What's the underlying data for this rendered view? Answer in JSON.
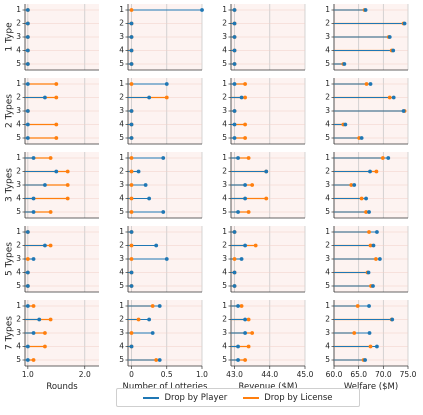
{
  "colors": {
    "player": "#1f77b4",
    "license": "#ff7f0e",
    "panel_bg": "#fdf3f1",
    "grid": "#c9c9c9"
  },
  "legend": {
    "player_label": "Drop by Player",
    "license_label": "Drop by License"
  },
  "chart_data": {
    "type": "dumbbell",
    "row_facets": [
      "1 Type",
      "2 Types",
      "3 Types",
      "5 Types",
      "7 Types"
    ],
    "y_categories": [
      "1",
      "2",
      "3",
      "4",
      "5"
    ],
    "columns": [
      {
        "xlabel": "Rounds",
        "xlim": [
          0.95,
          2.25
        ],
        "ticks": [
          1.0,
          2.0
        ],
        "tick_labels": [
          "1.0",
          "2.0"
        ]
      },
      {
        "xlabel": "Number of Lotteries",
        "xlim": [
          -0.05,
          1.0
        ],
        "ticks": [
          0.0,
          0.5,
          1.0
        ],
        "tick_labels": [
          "0",
          "0.5",
          "1.0"
        ]
      },
      {
        "xlabel": "Revenue ($M)",
        "xlim": [
          42.9,
          45.0
        ],
        "ticks": [
          43.0,
          44.0,
          45.0
        ],
        "tick_labels": [
          "43.0",
          "44.0",
          "45.0"
        ]
      },
      {
        "xlabel": "Welfare ($M)",
        "xlim": [
          60.0,
          75.0
        ],
        "ticks": [
          60.0,
          65.0,
          70.0,
          75.0
        ],
        "tick_labels": [
          "60.0",
          "65.0",
          "70.0",
          "75.0"
        ]
      }
    ],
    "panels": [
      [
        {
          "player": [
            1.0,
            1.0,
            1.0,
            1.0,
            1.0
          ],
          "license": [
            1.0,
            1.0,
            1.0,
            1.0,
            1.0
          ]
        },
        {
          "player": [
            1.0,
            0.0,
            0.0,
            0.0,
            0.0
          ],
          "license": [
            0.0,
            0.0,
            0.0,
            0.0,
            0.0
          ]
        },
        {
          "player": [
            43.0,
            43.0,
            43.0,
            43.0,
            43.0
          ],
          "license": [
            43.0,
            43.0,
            43.0,
            43.0,
            43.0
          ]
        },
        {
          "player": [
            66.4,
            74.3,
            71.3,
            72.0,
            62.1
          ],
          "license": [
            66.2,
            74.1,
            71.1,
            71.7,
            61.9
          ]
        }
      ],
      [
        {
          "player": [
            1.0,
            1.3,
            1.0,
            1.0,
            1.0
          ],
          "license": [
            1.5,
            1.5,
            1.0,
            1.5,
            1.5
          ]
        },
        {
          "player": [
            0.5,
            0.25,
            0.0,
            0.0,
            0.0
          ],
          "license": [
            0.0,
            0.5,
            0.0,
            0.0,
            0.0
          ]
        },
        {
          "player": [
            43.0,
            43.2,
            43.0,
            43.0,
            43.0
          ],
          "license": [
            43.3,
            43.3,
            43.0,
            43.3,
            43.3
          ]
        },
        {
          "player": [
            67.4,
            72.1,
            74.1,
            62.3,
            65.6
          ],
          "license": [
            66.6,
            71.3,
            74.3,
            61.9,
            65.1
          ]
        }
      ],
      [
        {
          "player": [
            1.1,
            1.5,
            1.3,
            1.1,
            1.1
          ],
          "license": [
            1.4,
            1.7,
            1.7,
            1.7,
            1.4
          ]
        },
        {
          "player": [
            0.45,
            0.1,
            0.2,
            0.25,
            0.45
          ],
          "license": [
            0.0,
            0.0,
            0.0,
            0.0,
            0.0
          ]
        },
        {
          "player": [
            43.1,
            43.9,
            43.3,
            43.3,
            43.1
          ],
          "license": [
            43.4,
            43.9,
            43.5,
            43.9,
            43.4
          ]
        },
        {
          "player": [
            71.0,
            67.3,
            64.1,
            66.5,
            67.1
          ],
          "license": [
            69.9,
            68.6,
            63.5,
            65.6,
            66.5
          ]
        }
      ],
      [
        {
          "player": [
            1.0,
            1.3,
            1.1,
            1.0,
            1.0
          ],
          "license": [
            1.0,
            1.4,
            1.0,
            1.0,
            1.0
          ]
        },
        {
          "player": [
            0.0,
            0.35,
            0.5,
            0.0,
            0.0
          ],
          "license": [
            0.0,
            0.0,
            0.0,
            0.0,
            0.0
          ]
        },
        {
          "player": [
            43.0,
            43.3,
            43.2,
            43.0,
            43.0
          ],
          "license": [
            43.0,
            43.6,
            43.0,
            43.0,
            43.0
          ]
        },
        {
          "player": [
            68.7,
            68.0,
            69.3,
            67.0,
            67.9
          ],
          "license": [
            67.1,
            67.4,
            68.5,
            66.8,
            67.5
          ]
        }
      ],
      [
        {
          "player": [
            1.0,
            1.2,
            1.1,
            1.0,
            1.0
          ],
          "license": [
            1.1,
            1.4,
            1.3,
            1.3,
            1.1
          ]
        },
        {
          "player": [
            0.4,
            0.25,
            0.3,
            0.0,
            0.4
          ],
          "license": [
            0.3,
            0.1,
            0.0,
            0.0,
            0.35
          ]
        },
        {
          "player": [
            43.1,
            43.3,
            43.3,
            43.1,
            43.1
          ],
          "license": [
            43.2,
            43.4,
            43.5,
            43.4,
            43.3
          ]
        },
        {
          "player": [
            67.1,
            71.8,
            67.2,
            68.7,
            66.3
          ],
          "license": [
            64.8,
            71.7,
            64.1,
            67.4,
            66.0
          ]
        }
      ]
    ]
  }
}
